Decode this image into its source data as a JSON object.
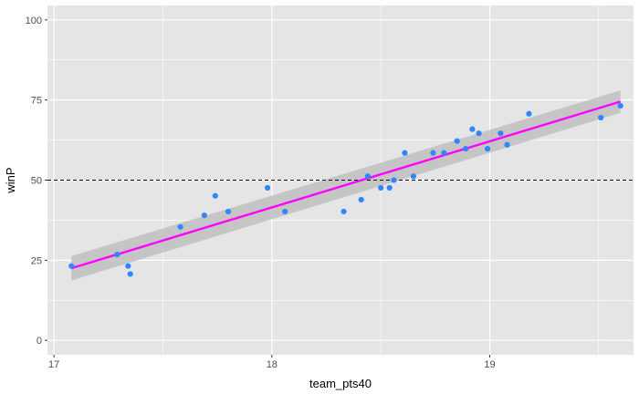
{
  "chart_data": {
    "type": "scatter",
    "xlabel": "team_pts40",
    "ylabel": "winP",
    "xlim": [
      16.97,
      19.66
    ],
    "ylim": [
      -4.5,
      104.5
    ],
    "x_ticks": [
      17,
      18,
      19
    ],
    "y_ticks": [
      0,
      25,
      50,
      75,
      100
    ],
    "x_tick_labels": [
      "17",
      "18",
      "19"
    ],
    "y_tick_labels": [
      "0",
      "25",
      "50",
      "75",
      "100"
    ],
    "grid": true,
    "points": [
      {
        "x": 17.08,
        "y": 23.2
      },
      {
        "x": 17.29,
        "y": 26.8
      },
      {
        "x": 17.34,
        "y": 23.2
      },
      {
        "x": 17.35,
        "y": 20.7
      },
      {
        "x": 17.58,
        "y": 35.4
      },
      {
        "x": 17.69,
        "y": 39.0
      },
      {
        "x": 17.74,
        "y": 45.1
      },
      {
        "x": 17.8,
        "y": 40.2
      },
      {
        "x": 17.98,
        "y": 47.6
      },
      {
        "x": 18.06,
        "y": 40.2
      },
      {
        "x": 18.33,
        "y": 40.2
      },
      {
        "x": 18.41,
        "y": 43.9
      },
      {
        "x": 18.44,
        "y": 51.2
      },
      {
        "x": 18.5,
        "y": 47.6
      },
      {
        "x": 18.54,
        "y": 47.6
      },
      {
        "x": 18.56,
        "y": 50.0
      },
      {
        "x": 18.61,
        "y": 58.5
      },
      {
        "x": 18.65,
        "y": 51.2
      },
      {
        "x": 18.74,
        "y": 58.5
      },
      {
        "x": 18.79,
        "y": 58.5
      },
      {
        "x": 18.85,
        "y": 62.2
      },
      {
        "x": 18.89,
        "y": 59.8
      },
      {
        "x": 18.92,
        "y": 65.9
      },
      {
        "x": 18.95,
        "y": 64.6
      },
      {
        "x": 18.99,
        "y": 59.8
      },
      {
        "x": 19.05,
        "y": 64.6
      },
      {
        "x": 19.08,
        "y": 61.0
      },
      {
        "x": 19.18,
        "y": 70.7
      },
      {
        "x": 19.51,
        "y": 69.5
      },
      {
        "x": 19.6,
        "y": 73.2
      }
    ],
    "trend_line": {
      "x": [
        17.08,
        19.6
      ],
      "y": [
        22.5,
        74.5
      ],
      "ci_lower": [
        18.7,
        71.0
      ],
      "ci_upper": [
        26.3,
        78.0
      ],
      "color": "#ff00ff"
    },
    "reference_line": {
      "y": 50,
      "style": "dashed",
      "color": "#000000"
    },
    "point_color": "#3385ff",
    "ci_color": "#bfbfbf",
    "panel_background": "#e5e5e5",
    "grid_color": "#ffffff"
  }
}
